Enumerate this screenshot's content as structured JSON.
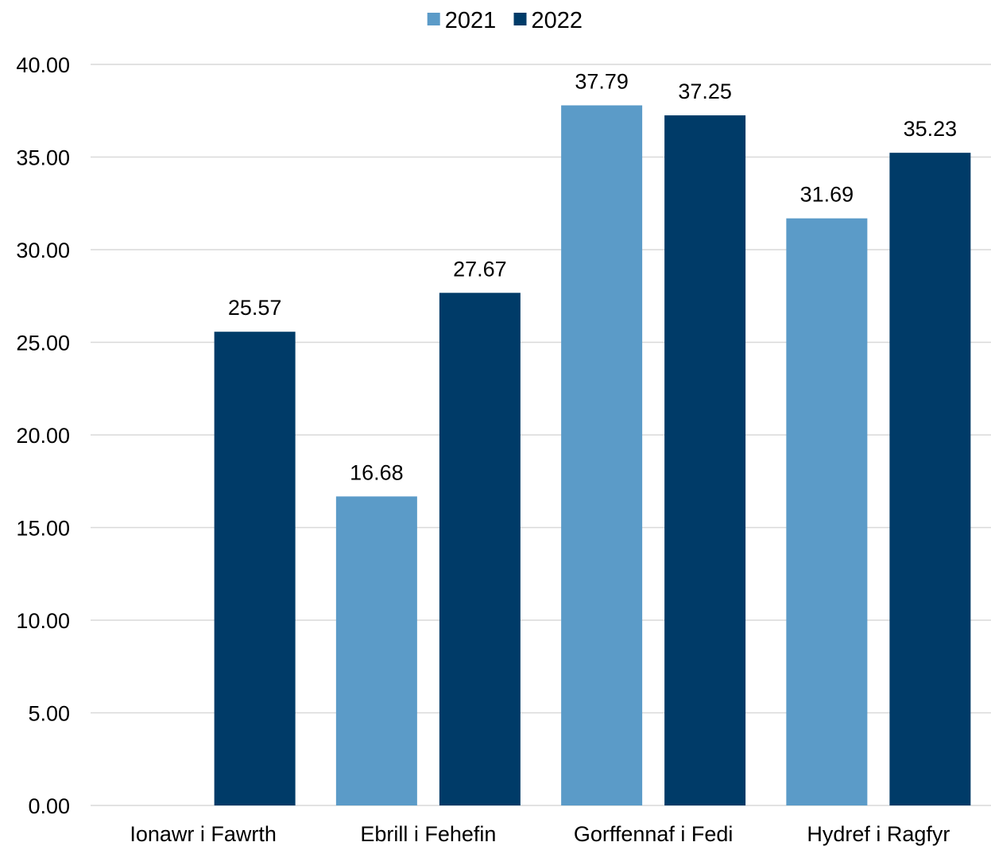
{
  "chart_data": {
    "type": "bar",
    "categories": [
      "Ionawr i Fawrth",
      "Ebrill i Fehefin",
      "Gorffennaf i Fedi",
      "Hydref i Ragfyr"
    ],
    "series": [
      {
        "name": "2021",
        "color": "#5b9bc8",
        "values": [
          null,
          16.68,
          37.79,
          31.69
        ]
      },
      {
        "name": "2022",
        "color": "#003b68",
        "values": [
          25.57,
          27.67,
          37.25,
          35.23
        ]
      }
    ],
    "data_labels": [
      [
        "",
        "16.68",
        "37.79",
        "31.69"
      ],
      [
        "25.57",
        "27.67",
        "37.25",
        "35.23"
      ]
    ],
    "y_ticks": [
      0,
      5,
      10,
      15,
      20,
      25,
      30,
      35,
      40
    ],
    "y_tick_labels": [
      "0.00",
      "5.00",
      "10.00",
      "15.00",
      "20.00",
      "25.00",
      "30.00",
      "35.00",
      "40.00"
    ],
    "ylim": [
      0,
      40
    ],
    "grid": true,
    "legend_position": "top-center"
  }
}
